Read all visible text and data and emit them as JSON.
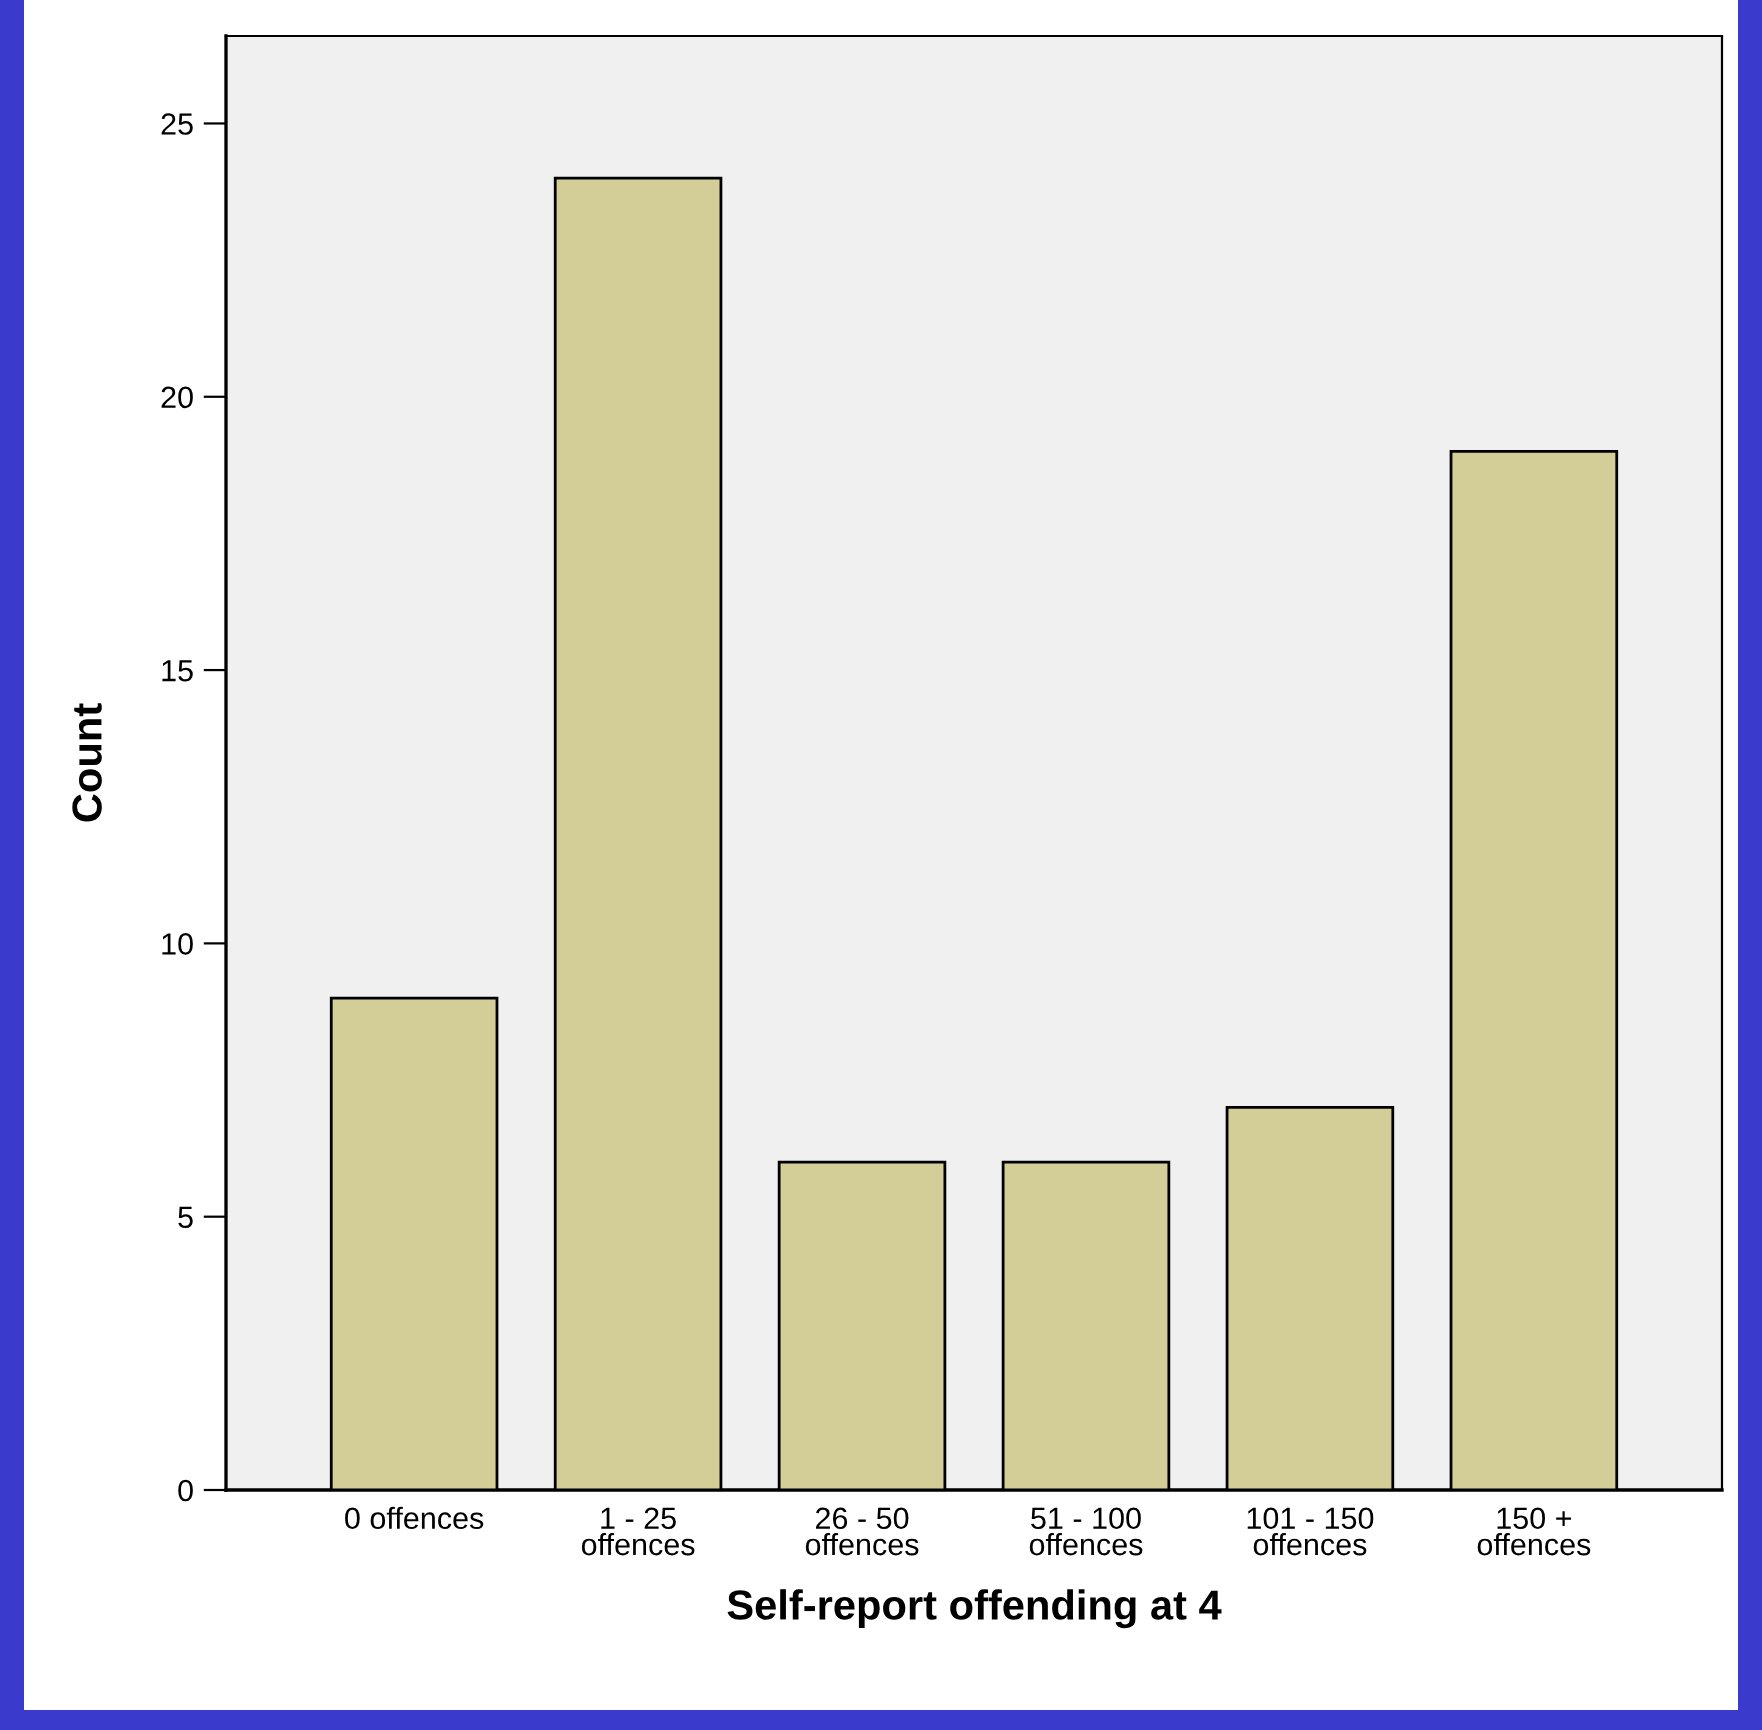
{
  "chart_data": {
    "type": "bar",
    "xlabel": "Self-report offending at 4",
    "ylabel": "Count",
    "categories": [
      "0 offences",
      "1 - 25\noffences",
      "26 - 50\noffences",
      "51 - 100\noffences",
      "101 - 150\noffences",
      "150 +\noffences"
    ],
    "values": [
      9,
      24,
      6,
      6,
      7,
      19
    ],
    "color": "#d3ce97",
    "ylim": [
      0,
      26.6
    ],
    "yticks": [
      0,
      5,
      10,
      15,
      20,
      25
    ]
  }
}
